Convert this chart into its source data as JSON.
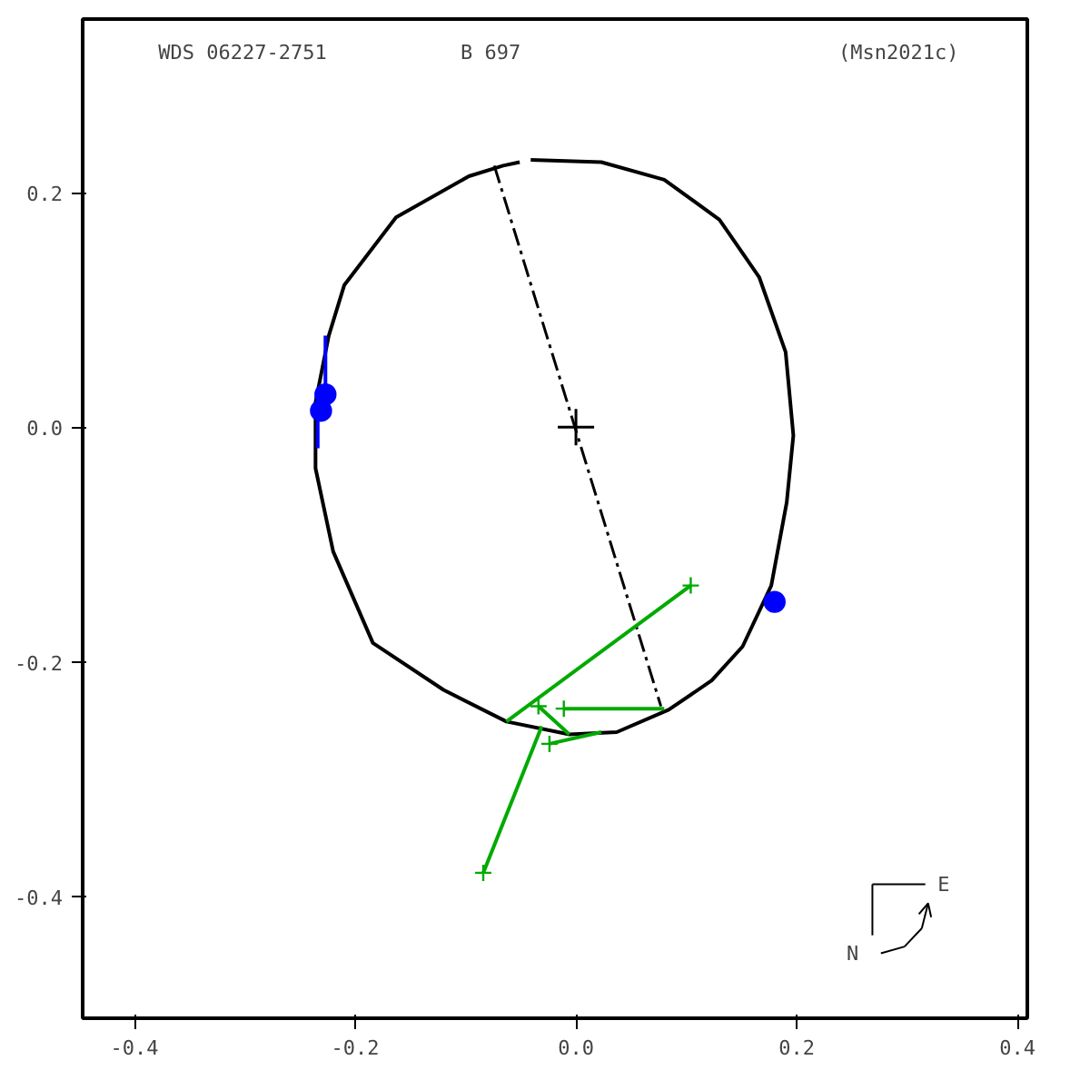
{
  "chart_data": {
    "type": "line",
    "annotations": [
      "WDS 06227-2751",
      "B   697",
      "(Msn2021c)",
      "N",
      "E"
    ],
    "xlim": [
      -0.447,
      0.409
    ],
    "ylim": [
      -0.504,
      0.348
    ],
    "xticks": [
      -0.4,
      -0.2,
      {
        "value": 0,
        "label": "0.0"
      },
      0.2,
      0.4
    ],
    "yticks": [
      -0.4,
      -0.2,
      {
        "value": 0,
        "label": "0.0"
      },
      0.2
    ],
    "grid": false,
    "series": [
      {
        "color": "#000000",
        "marker": "none",
        "line_style": "solid",
        "x": [
          -0.041,
          0.023,
          0.08,
          0.13,
          0.166,
          0.19,
          0.197,
          0.191,
          0.177,
          0.151,
          0.123,
          0.084,
          0.037,
          -0.006,
          -0.063,
          -0.12,
          -0.184,
          -0.22,
          -0.236,
          -0.236,
          -0.224,
          -0.21,
          -0.163,
          -0.097,
          -0.066,
          -0.051
        ],
        "values": [
          0.228,
          0.226,
          0.211,
          0.177,
          0.128,
          0.064,
          -0.007,
          -0.064,
          -0.135,
          -0.187,
          -0.216,
          -0.241,
          -0.26,
          -0.262,
          -0.251,
          -0.224,
          -0.184,
          -0.106,
          -0.035,
          0.021,
          0.078,
          0.121,
          0.179,
          0.214,
          0.223,
          0.226
        ]
      },
      {
        "type": "line",
        "color": "#000000",
        "marker": "none",
        "line_style": "dashed",
        "x": [
          -0.074,
          0.077
        ],
        "values": [
          0.223,
          -0.238
        ]
      },
      {
        "type": "scatter",
        "color": "#000000",
        "marker": "cross",
        "x": [
          0.0
        ],
        "values": [
          0.0
        ]
      },
      {
        "type": "line",
        "color": "#0000ff",
        "marker": "none",
        "line_style": "solid",
        "x": [
          -0.227,
          -0.227,
          null,
          -0.234,
          -0.234
        ],
        "values": [
          0.078,
          0.028,
          null,
          0.014,
          -0.018
        ]
      },
      {
        "type": "scatter",
        "color": "#0000ff",
        "marker": "circle",
        "x": [
          -0.227,
          -0.231,
          0.18
        ],
        "values": [
          0.028,
          0.014,
          -0.149
        ]
      },
      {
        "type": "line",
        "color": "#00aa00",
        "marker": "none",
        "line_style": "solid",
        "x": [
          0.104,
          -0.063,
          null,
          -0.011,
          0.08,
          null,
          -0.034,
          -0.006,
          null,
          -0.024,
          0.023,
          null,
          -0.084,
          -0.031
        ],
        "values": [
          -0.135,
          -0.251,
          null,
          -0.24,
          -0.24,
          null,
          -0.238,
          -0.262,
          null,
          -0.27,
          -0.26,
          null,
          -0.38,
          -0.255
        ]
      },
      {
        "type": "scatter",
        "color": "#00aa00",
        "marker": "cross",
        "x": [
          0.104,
          -0.034,
          -0.011,
          -0.024,
          -0.084
        ],
        "values": [
          -0.135,
          -0.238,
          -0.24,
          -0.27,
          -0.38
        ]
      }
    ]
  }
}
